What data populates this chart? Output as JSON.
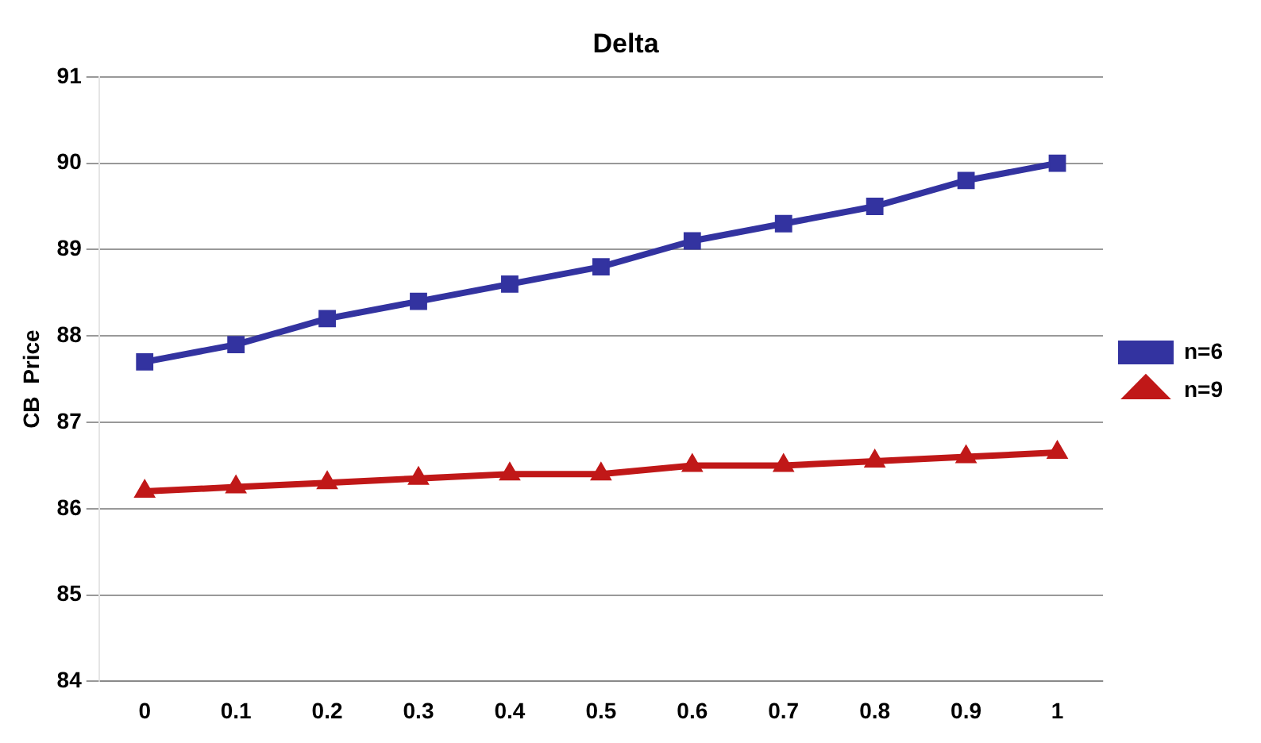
{
  "chart_data": {
    "type": "line",
    "title": "Delta",
    "ylabel": "CB  Price",
    "categories": [
      "0",
      "0.1",
      "0.2",
      "0.3",
      "0.4",
      "0.5",
      "0.6",
      "0.7",
      "0.8",
      "0.9",
      "1"
    ],
    "series": [
      {
        "name": "n=6",
        "color": "#3333a0",
        "marker": "square",
        "values": [
          87.7,
          87.9,
          88.2,
          88.4,
          88.6,
          88.8,
          89.1,
          89.3,
          89.5,
          89.8,
          90.0
        ]
      },
      {
        "name": "n=9",
        "color": "#c01818",
        "marker": "triangle",
        "values": [
          86.2,
          86.25,
          86.3,
          86.35,
          86.4,
          86.4,
          86.5,
          86.5,
          86.55,
          86.6,
          86.65
        ]
      }
    ],
    "ylim": [
      84,
      91
    ],
    "yticks": [
      84,
      85,
      86,
      87,
      88,
      89,
      90,
      91
    ],
    "grid": "y",
    "legend": "right",
    "line_style": "solid"
  }
}
